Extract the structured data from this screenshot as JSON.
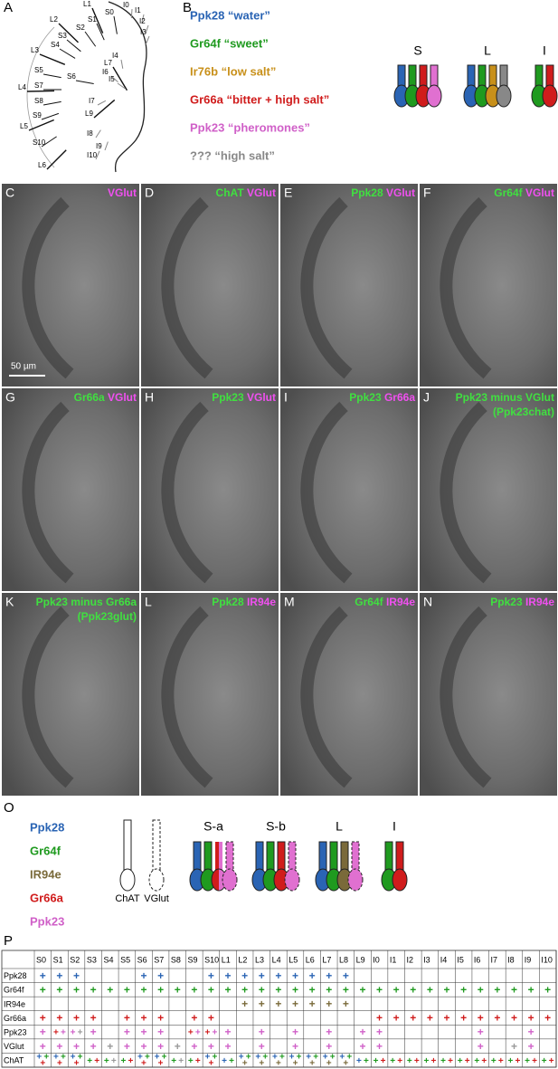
{
  "panel_a": {
    "letter": "A",
    "labels": [
      "L1",
      "S0",
      "I0",
      "I1",
      "L2",
      "S1",
      "S2",
      "I2",
      "I3",
      "L3",
      "S3",
      "S4",
      "I4",
      "L7",
      "S5",
      "S6",
      "I6",
      "I5",
      "L4",
      "S7",
      "S8",
      "I7",
      "L9",
      "S9",
      "L5",
      "S10",
      "I8",
      "I9",
      "L6",
      "I10"
    ]
  },
  "panel_b": {
    "letter": "B",
    "legend": [
      {
        "text": "Ppk28 “water”",
        "color": "#2a64b4"
      },
      {
        "text": "Gr64f “sweet”",
        "color": "#1f9a1f"
      },
      {
        "text": "Ir76b “low salt”",
        "color": "#c8901a"
      },
      {
        "text": "Gr66a “bitter + high salt”",
        "color": "#d01c1c"
      },
      {
        "text": "Ppk23 “pheromones”",
        "color": "#d060c8"
      },
      {
        "text": "??? “high salt”",
        "color": "#888888"
      }
    ],
    "groups": [
      {
        "label": "S",
        "neurons": [
          {
            "colors": [
              "#2a64b4"
            ]
          },
          {
            "colors": [
              "#1f9a1f"
            ]
          },
          {
            "colors": [
              "#d01c1c"
            ]
          },
          {
            "colors": [
              "#e070d0"
            ]
          }
        ]
      },
      {
        "label": "L",
        "neurons": [
          {
            "colors": [
              "#2a64b4"
            ]
          },
          {
            "colors": [
              "#1f9a1f"
            ]
          },
          {
            "colors": [
              "#c8901a"
            ]
          },
          {
            "colors": [
              "#888888"
            ]
          }
        ]
      },
      {
        "label": "I",
        "neurons": [
          {
            "colors": [
              "#1f9a1f"
            ]
          },
          {
            "colors": [
              "#d01c1c"
            ]
          }
        ]
      }
    ]
  },
  "panels": [
    {
      "letter": "C",
      "lines": [
        [
          {
            "text": "VGlut",
            "color": "#f050f0"
          }
        ]
      ],
      "scale_bar": "50 µm"
    },
    {
      "letter": "D",
      "lines": [
        [
          {
            "text": "ChAT",
            "color": "#40e040"
          },
          {
            "text": "VGlut",
            "color": "#f050f0"
          }
        ]
      ]
    },
    {
      "letter": "E",
      "lines": [
        [
          {
            "text": "Ppk28",
            "color": "#40e040"
          },
          {
            "text": "VGlut",
            "color": "#f050f0"
          }
        ]
      ]
    },
    {
      "letter": "F",
      "lines": [
        [
          {
            "text": "Gr64f",
            "color": "#40e040"
          },
          {
            "text": "VGlut",
            "color": "#f050f0"
          }
        ]
      ]
    },
    {
      "letter": "G",
      "lines": [
        [
          {
            "text": "Gr66a",
            "color": "#40e040"
          },
          {
            "text": "VGlut",
            "color": "#f050f0"
          }
        ]
      ]
    },
    {
      "letter": "H",
      "lines": [
        [
          {
            "text": "Ppk23",
            "color": "#40e040"
          },
          {
            "text": "VGlut",
            "color": "#f050f0"
          }
        ]
      ]
    },
    {
      "letter": "I",
      "lines": [
        [
          {
            "text": "Ppk23",
            "color": "#40e040"
          },
          {
            "text": "Gr66a",
            "color": "#f050f0"
          }
        ]
      ]
    },
    {
      "letter": "J",
      "lines": [
        [
          {
            "text": "Ppk23 minus VGlut",
            "color": "#40e040"
          }
        ],
        [
          {
            "text": "(Ppk23chat)",
            "color": "#40e040"
          }
        ]
      ]
    },
    {
      "letter": "K",
      "lines": [
        [
          {
            "text": "Ppk23 minus Gr66a",
            "color": "#40e040"
          }
        ],
        [
          {
            "text": "(Ppk23glut)",
            "color": "#40e040"
          }
        ]
      ]
    },
    {
      "letter": "L",
      "lines": [
        [
          {
            "text": "Ppk28",
            "color": "#40e040"
          },
          {
            "text": "IR94e",
            "color": "#f050f0"
          }
        ]
      ]
    },
    {
      "letter": "M",
      "lines": [
        [
          {
            "text": "Gr64f",
            "color": "#40e040"
          },
          {
            "text": "IR94e",
            "color": "#f050f0"
          }
        ]
      ]
    },
    {
      "letter": "N",
      "lines": [
        [
          {
            "text": "Ppk23",
            "color": "#40e040"
          },
          {
            "text": "IR94e",
            "color": "#f050f0"
          }
        ]
      ]
    }
  ],
  "panel_o": {
    "letter": "O",
    "legend": [
      {
        "text": "Ppk28",
        "color": "#2a64b4"
      },
      {
        "text": "Gr64f",
        "color": "#1f9a1f"
      },
      {
        "text": "IR94e",
        "color": "#7a6a3a"
      },
      {
        "text": "Gr66a",
        "color": "#d01c1c"
      },
      {
        "text": "Ppk23",
        "color": "#d060c8"
      }
    ],
    "key": [
      {
        "text": "ChAT",
        "outline": "solid"
      },
      {
        "text": "VGlut",
        "outline": "dashed"
      }
    ],
    "groups": [
      {
        "label": "S-a",
        "neurons": [
          {
            "colors": [
              "#2a64b4"
            ]
          },
          {
            "colors": [
              "#1f9a1f"
            ]
          },
          {
            "colors": [
              "#d01c1c",
              "#e070d0"
            ]
          },
          {
            "colors": [
              "#e070d0"
            ],
            "outline": "dashed"
          }
        ]
      },
      {
        "label": "S-b",
        "neurons": [
          {
            "colors": [
              "#2a64b4"
            ]
          },
          {
            "colors": [
              "#1f9a1f"
            ]
          },
          {
            "colors": [
              "#d01c1c"
            ]
          },
          {
            "colors": [
              "#e070d0"
            ],
            "outline": "dashed"
          }
        ]
      },
      {
        "label": "L",
        "neurons": [
          {
            "colors": [
              "#2a64b4"
            ]
          },
          {
            "colors": [
              "#1f9a1f"
            ]
          },
          {
            "colors": [
              "#7a6a3a"
            ]
          },
          {
            "colors": [
              "#e070d0"
            ],
            "outline": "dashed"
          }
        ]
      },
      {
        "label": "I",
        "neurons": [
          {
            "colors": [
              "#1f9a1f"
            ]
          },
          {
            "colors": [
              "#d01c1c"
            ]
          }
        ]
      }
    ]
  },
  "table": {
    "letter": "P",
    "mark": "+",
    "palette": {
      "b": "#2a64b4",
      "g": "#1f9a1f",
      "o": "#7a6a3a",
      "r": "#d01c1c",
      "m": "#d060c8",
      "k": "#999999"
    },
    "columns": [
      "S0",
      "S1",
      "S2",
      "S3",
      "S4",
      "S5",
      "S6",
      "S7",
      "S8",
      "S9",
      "S10",
      "L1",
      "L2",
      "L3",
      "L4",
      "L5",
      "L6",
      "L7",
      "L8",
      "L9",
      "I0",
      "I1",
      "I2",
      "I3",
      "I4",
      "I5",
      "I6",
      "I7",
      "I8",
      "I9",
      "I10"
    ],
    "rows": [
      {
        "label": "Ppk28",
        "cells": [
          "b",
          "b",
          "b",
          null,
          null,
          null,
          "b",
          "b",
          null,
          null,
          "b",
          "b",
          "b",
          "b",
          "b",
          "b",
          "b",
          "b",
          "b",
          null,
          null,
          null,
          null,
          null,
          null,
          null,
          null,
          null,
          null,
          null,
          null
        ]
      },
      {
        "label": "Gr64f",
        "cells": [
          "g",
          "g",
          "g",
          "g",
          "g",
          "g",
          "g",
          "g",
          "g",
          "g",
          "g",
          "g",
          "g",
          "g",
          "g",
          "g",
          "g",
          "g",
          "g",
          "g",
          "g",
          "g",
          "g",
          "g",
          "g",
          "g",
          "g",
          "g",
          "g",
          "g",
          "g"
        ]
      },
      {
        "label": "IR94e",
        "cells": [
          null,
          null,
          null,
          null,
          null,
          null,
          null,
          null,
          null,
          null,
          null,
          null,
          "o",
          "o",
          "o",
          "o",
          "o",
          "o",
          "o",
          null,
          null,
          null,
          null,
          null,
          null,
          null,
          null,
          null,
          null,
          null,
          null
        ]
      },
      {
        "label": "Gr66a",
        "cells": [
          "r",
          "r",
          "r",
          "r",
          null,
          "r",
          "r",
          "r",
          null,
          "r",
          "r",
          null,
          null,
          null,
          null,
          null,
          null,
          null,
          null,
          null,
          "r",
          "r",
          "r",
          "r",
          "r",
          "r",
          "r",
          "r",
          "r",
          "r",
          "r"
        ]
      },
      {
        "label": "Ppk23",
        "cells": [
          "m",
          "rm",
          "mk",
          "m",
          null,
          "m",
          "m",
          "m",
          null,
          "rm",
          "rm",
          "m",
          null,
          "m",
          null,
          "m",
          null,
          "m",
          null,
          "m",
          "m",
          null,
          null,
          null,
          null,
          null,
          "m",
          null,
          null,
          "m",
          null
        ]
      },
      {
        "label": "VGlut",
        "cells": [
          "m",
          "m",
          "m",
          "m",
          "k",
          "m",
          "m",
          "m",
          "k",
          "m",
          "m",
          "m",
          null,
          "m",
          null,
          "m",
          null,
          "m",
          null,
          "m",
          "m",
          null,
          null,
          null,
          null,
          null,
          "m",
          null,
          "k",
          "m",
          null
        ]
      },
      {
        "label": "ChAT",
        "cells": [
          "bgr",
          "bgr",
          "bgr",
          "gr",
          "gk",
          "gr",
          "bgr",
          "bgr",
          "gk",
          "gr",
          "bgr",
          "bg",
          "bgo",
          "bgo",
          "bgo",
          "bgo",
          "bgo",
          "bgo",
          "bgo",
          "bg",
          "gr",
          "gr",
          "gr",
          "gr",
          "gr",
          "gr",
          "gr",
          "gr",
          "gr",
          "gr",
          "gr"
        ]
      }
    ]
  }
}
